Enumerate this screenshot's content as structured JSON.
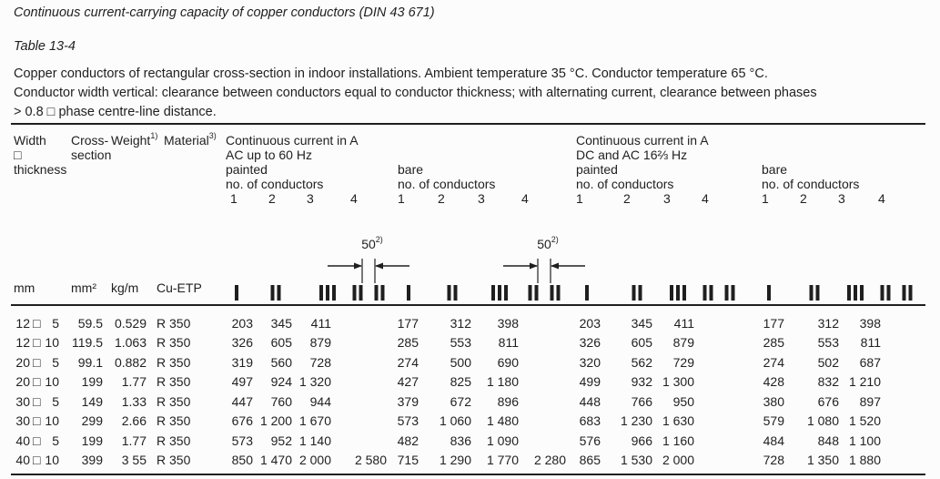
{
  "colors": {
    "text": "#1f1f1f",
    "background": "#fcfcfc",
    "rule": "#1f1f1f"
  },
  "document": {
    "heading": "Continuous current-carrying capacity of copper conductors (DIN 43 671)",
    "table_label": "Table 13-4",
    "description": [
      "Copper conductors of rectangular cross-section in indoor installations. Ambient temperature 35 °C. Conductor temperature 65 °C.",
      "Conductor width vertical: clearance between conductors equal to conductor thickness; with alternating current, clearance between phases",
      "> 0.8 □ phase centre-line distance."
    ]
  },
  "table": {
    "box_glyph": "□",
    "header": {
      "width_thickness": {
        "line1": "Width",
        "line2": "□",
        "line3": "thickness"
      },
      "cross_section": {
        "line1": "Cross-",
        "line2": "section"
      },
      "weight": {
        "label": "Weight",
        "footnote": "1)"
      },
      "material": {
        "label": "Material",
        "footnote": "3)"
      },
      "no_of_conductors": "no. of conductors",
      "conductor_numbers": [
        "1",
        "2",
        "3",
        "4"
      ],
      "dimension_label": {
        "value": "50",
        "footnote": "2)"
      },
      "groups": [
        {
          "title_line1": "Continuous current in A",
          "title_line2": "AC up to 60 Hz",
          "subgroups": [
            {
              "finish": "painted"
            },
            {
              "finish": "bare"
            }
          ]
        },
        {
          "title_line1": "Continuous current in A",
          "title_line2": "DC and AC 16⅔ Hz",
          "subgroups": [
            {
              "finish": "painted"
            },
            {
              "finish": "bare"
            }
          ]
        }
      ]
    },
    "units": {
      "width": "mm",
      "cross_section": "mm²",
      "weight": "kg/m",
      "material": "Cu-ETP"
    },
    "rows": [
      {
        "width": "12",
        "thickness": "5",
        "cross_section": "59.5",
        "weight": "0.529",
        "material": "R 350",
        "ac_painted": [
          "203",
          "345",
          "411",
          ""
        ],
        "ac_bare": [
          "177",
          "312",
          "398",
          ""
        ],
        "dc_painted": [
          "203",
          "345",
          "411",
          ""
        ],
        "dc_bare": [
          "177",
          "312",
          "398",
          ""
        ]
      },
      {
        "width": "12",
        "thickness": "10",
        "cross_section": "119.5",
        "weight": "1.063",
        "material": "R 350",
        "ac_painted": [
          "326",
          "605",
          "879",
          ""
        ],
        "ac_bare": [
          "285",
          "553",
          "811",
          ""
        ],
        "dc_painted": [
          "326",
          "605",
          "879",
          ""
        ],
        "dc_bare": [
          "285",
          "553",
          "811",
          ""
        ]
      },
      {
        "width": "20",
        "thickness": "5",
        "cross_section": "99.1",
        "weight": "0.882",
        "material": "R 350",
        "ac_painted": [
          "319",
          "560",
          "728",
          ""
        ],
        "ac_bare": [
          "274",
          "500",
          "690",
          ""
        ],
        "dc_painted": [
          "320",
          "562",
          "729",
          ""
        ],
        "dc_bare": [
          "274",
          "502",
          "687",
          ""
        ]
      },
      {
        "width": "20",
        "thickness": "10",
        "cross_section": "199",
        "weight": "1.77",
        "material": "R 350",
        "ac_painted": [
          "497",
          "924",
          "1 320",
          ""
        ],
        "ac_bare": [
          "427",
          "825",
          "1 180",
          ""
        ],
        "dc_painted": [
          "499",
          "932",
          "1 300",
          ""
        ],
        "dc_bare": [
          "428",
          "832",
          "1 210",
          ""
        ]
      },
      {
        "width": "30",
        "thickness": "5",
        "cross_section": "149",
        "weight": "1.33",
        "material": "R 350",
        "ac_painted": [
          "447",
          "760",
          "944",
          ""
        ],
        "ac_bare": [
          "379",
          "672",
          "896",
          ""
        ],
        "dc_painted": [
          "448",
          "766",
          "950",
          ""
        ],
        "dc_bare": [
          "380",
          "676",
          "897",
          ""
        ]
      },
      {
        "width": "30",
        "thickness": "10",
        "cross_section": "299",
        "weight": "2.66",
        "material": "R 350",
        "ac_painted": [
          "676",
          "1 200",
          "1 670",
          ""
        ],
        "ac_bare": [
          "573",
          "1 060",
          "1 480",
          ""
        ],
        "dc_painted": [
          "683",
          "1 230",
          "1 630",
          ""
        ],
        "dc_bare": [
          "579",
          "1 080",
          "1 520",
          ""
        ]
      },
      {
        "width": "40",
        "thickness": "5",
        "cross_section": "199",
        "weight": "1.77",
        "material": "R 350",
        "ac_painted": [
          "573",
          "952",
          "1 140",
          ""
        ],
        "ac_bare": [
          "482",
          "836",
          "1 090",
          ""
        ],
        "dc_painted": [
          "576",
          "966",
          "1 160",
          ""
        ],
        "dc_bare": [
          "484",
          "848",
          "1 100",
          ""
        ]
      },
      {
        "width": "40",
        "thickness": "10",
        "cross_section": "399",
        "weight": "3 55",
        "material": "R 350",
        "ac_painted": [
          "850",
          "1 470",
          "2 000",
          "2 580"
        ],
        "ac_bare": [
          "715",
          "1 290",
          "1 770",
          "2 280"
        ],
        "dc_painted": [
          "865",
          "1 530",
          "2 000",
          ""
        ],
        "dc_bare": [
          "728",
          "1 350",
          "1 880",
          ""
        ]
      }
    ]
  }
}
